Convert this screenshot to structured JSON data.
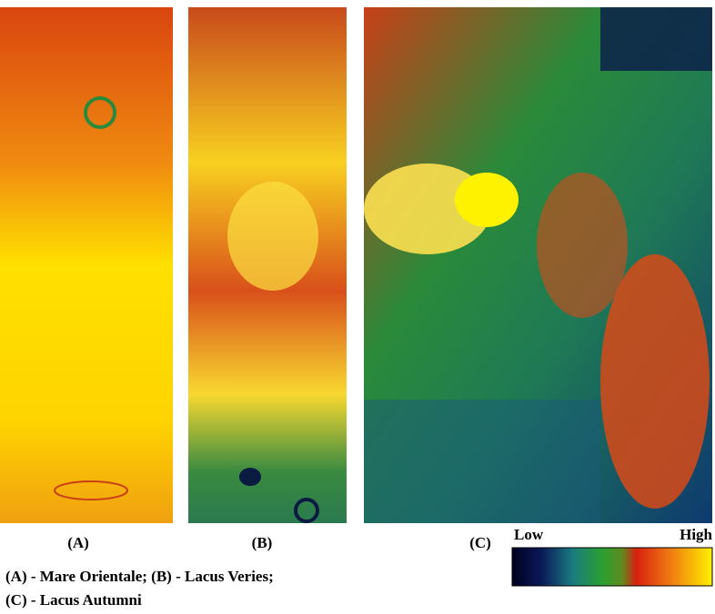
{
  "panels": [
    {
      "label": "(A)"
    },
    {
      "label": "(B)"
    },
    {
      "label": "(C)"
    }
  ],
  "colorbar": {
    "low": "Low",
    "high": "High"
  },
  "caption": [
    "(A) - Mare Orientale; (B) - Lacus Veries;",
    "(C) - Lacus Autumni"
  ]
}
